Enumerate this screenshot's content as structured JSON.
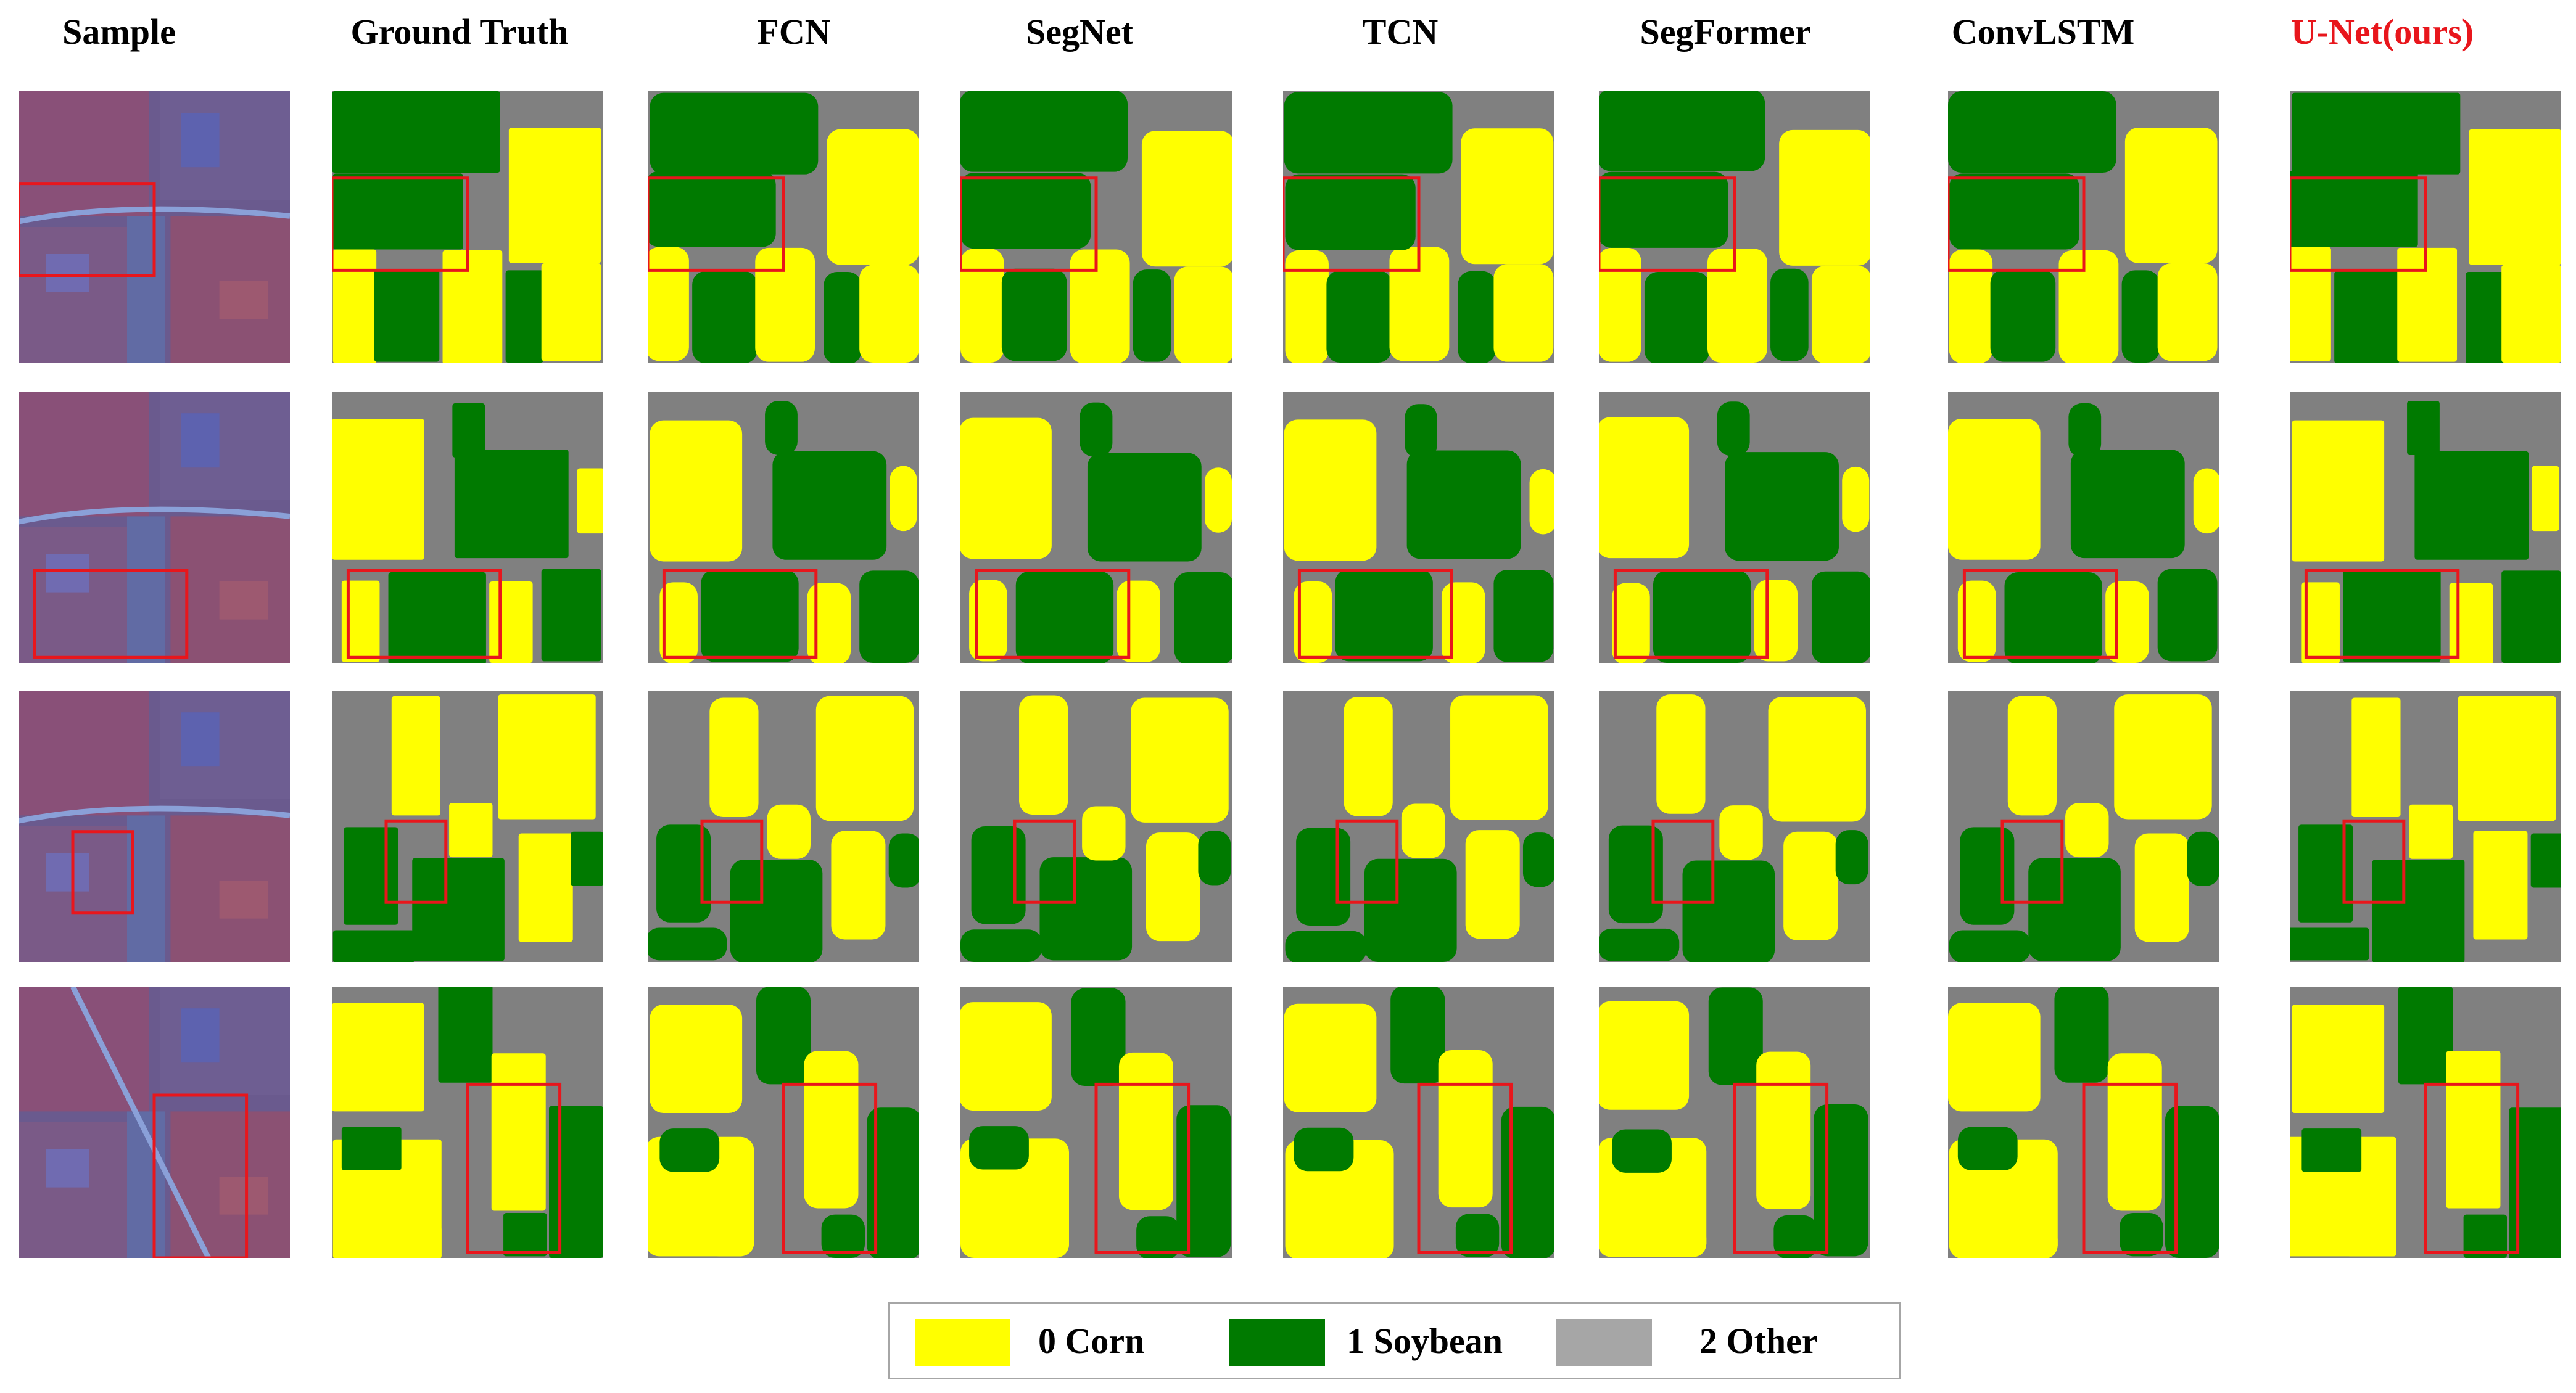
{
  "columns": [
    {
      "key": "sample",
      "label": "Sample"
    },
    {
      "key": "gt",
      "label": "Ground Truth"
    },
    {
      "key": "fcn",
      "label": "FCN"
    },
    {
      "key": "segnet",
      "label": "SegNet"
    },
    {
      "key": "tcn",
      "label": "TCN"
    },
    {
      "key": "segformer",
      "label": "SegFormer"
    },
    {
      "key": "convlstm",
      "label": "ConvLSTM"
    },
    {
      "key": "unet",
      "label": "U-Net(ours)"
    }
  ],
  "legend": [
    {
      "label": "0 Corn",
      "color": "#ffff00"
    },
    {
      "label": "1 Soybean",
      "color": "#007a00"
    },
    {
      "label": "2 Other",
      "color": "#a6a6a6"
    }
  ],
  "colors": {
    "corn": "#ffff00",
    "soybean": "#007a00",
    "other": "#808080",
    "highlight": "#e8161c",
    "ours_title": "#e8161c",
    "legend_other": "#a6a6a6"
  }
}
